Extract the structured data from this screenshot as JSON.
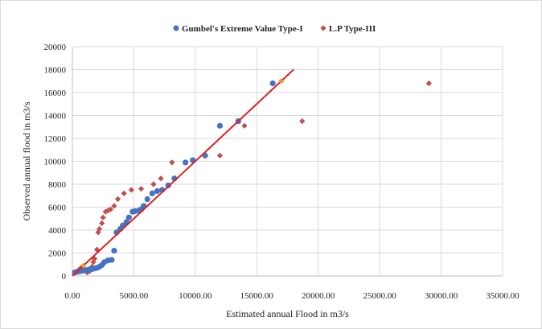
{
  "chart_data": {
    "type": "scatter",
    "title": "",
    "xlabel": "Estimated annual Flood in m3/s",
    "ylabel": "Observed annual flood in m3/s",
    "xlim": [
      0,
      35000
    ],
    "ylim": [
      0,
      20000
    ],
    "x_ticks": [
      0,
      5000,
      10000,
      15000,
      20000,
      25000,
      30000,
      35000
    ],
    "x_tick_labels": [
      "0.00",
      "5000.00",
      "10000.00",
      "15000.00",
      "20000.00",
      "25000.00",
      "30000.00",
      "35000.00"
    ],
    "y_ticks": [
      0,
      2000,
      4000,
      6000,
      8000,
      10000,
      12000,
      14000,
      16000,
      18000,
      20000
    ],
    "y_tick_labels": [
      "0",
      "2000",
      "4000",
      "6000",
      "8000",
      "10000",
      "12000",
      "14000",
      "16000",
      "18000",
      "20000"
    ],
    "grid": "horizontal-and-vertical",
    "legend_position": "top",
    "series": [
      {
        "name": "Gumbel's Extreme Value Type-I",
        "marker": "circle",
        "color": "#4472c4",
        "points": [
          [
            200,
            300
          ],
          [
            350,
            350
          ],
          [
            500,
            380
          ],
          [
            650,
            420
          ],
          [
            800,
            450
          ],
          [
            950,
            480
          ],
          [
            1100,
            500
          ],
          [
            1250,
            520
          ],
          [
            1400,
            560
          ],
          [
            1600,
            600
          ],
          [
            1800,
            650
          ],
          [
            2000,
            700
          ],
          [
            2200,
            800
          ],
          [
            2400,
            950
          ],
          [
            2600,
            1200
          ],
          [
            2900,
            1350
          ],
          [
            3200,
            1400
          ],
          [
            3400,
            2200
          ],
          [
            3600,
            3800
          ],
          [
            3900,
            4100
          ],
          [
            4100,
            4400
          ],
          [
            4400,
            4700
          ],
          [
            4600,
            5100
          ],
          [
            4900,
            5600
          ],
          [
            5100,
            5650
          ],
          [
            5400,
            5700
          ],
          [
            5600,
            5800
          ],
          [
            5800,
            6100
          ],
          [
            6100,
            6700
          ],
          [
            6500,
            7200
          ],
          [
            6900,
            7400
          ],
          [
            7300,
            7500
          ],
          [
            7800,
            7900
          ],
          [
            8300,
            8500
          ],
          [
            9200,
            9900
          ],
          [
            9800,
            10100
          ],
          [
            10800,
            10500
          ],
          [
            12000,
            13100
          ],
          [
            13500,
            13500
          ],
          [
            16300,
            16800
          ]
        ]
      },
      {
        "name": "L.P Type-III",
        "marker": "diamond",
        "color": "#c0504d",
        "points": [
          [
            200,
            300
          ],
          [
            500,
            500
          ],
          [
            700,
            700
          ],
          [
            900,
            900
          ],
          [
            1200,
            300
          ],
          [
            1400,
            400
          ],
          [
            1600,
            800
          ],
          [
            1700,
            1200
          ],
          [
            1800,
            1500
          ],
          [
            2000,
            2300
          ],
          [
            2100,
            3800
          ],
          [
            2200,
            4100
          ],
          [
            2400,
            4600
          ],
          [
            2500,
            5100
          ],
          [
            2700,
            5600
          ],
          [
            2900,
            5700
          ],
          [
            3100,
            5800
          ],
          [
            3400,
            6100
          ],
          [
            3700,
            6700
          ],
          [
            4200,
            7200
          ],
          [
            4800,
            7500
          ],
          [
            5600,
            7600
          ],
          [
            6600,
            8000
          ],
          [
            7200,
            8500
          ],
          [
            8100,
            9900
          ],
          [
            12000,
            10500
          ],
          [
            14000,
            13100
          ],
          [
            18700,
            13500
          ],
          [
            29000,
            16800
          ]
        ]
      }
    ],
    "fit_line": {
      "color": "#e02020",
      "from": [
        0,
        0
      ],
      "to": [
        18000,
        18000
      ]
    },
    "highlight_points": {
      "color": "#e0a030",
      "points": [
        [
          900,
          900
        ],
        [
          17000,
          17000
        ]
      ]
    }
  }
}
